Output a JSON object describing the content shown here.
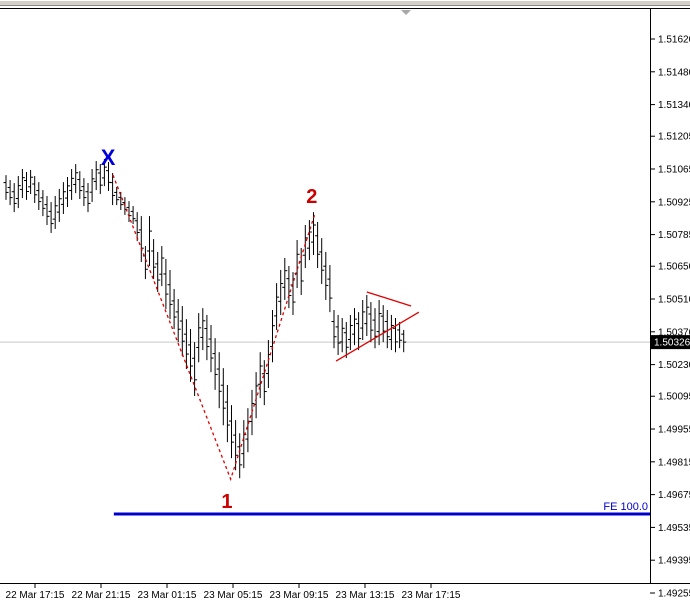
{
  "chart_data": {
    "type": "ohlc-bar",
    "timeframe_minutes": 15,
    "current_price": "1.50326",
    "y_axis_labels": [
      "1.51620",
      "1.51480",
      "1.51340",
      "1.51205",
      "1.51065",
      "1.50925",
      "1.50785",
      "1.50650",
      "1.50510",
      "1.50370",
      "1.50230",
      "1.50095",
      "1.49955",
      "1.49815",
      "1.49675",
      "1.49535",
      "1.49395",
      "1.49255"
    ],
    "y_axis_range": [
      1.49255,
      1.5162
    ],
    "x_axis_labels": [
      "22 Mar 17:15",
      "22 Mar 21:15",
      "23 Mar 01:15",
      "23 Mar 05:15",
      "23 Mar 09:15",
      "23 Mar 13:15",
      "23 Mar 17:15"
    ],
    "bars": [
      [
        1.51007,
        1.51039,
        1.50933,
        1.50965
      ],
      [
        1.50986,
        1.51018,
        1.50911,
        1.50943
      ],
      [
        1.50968,
        1.51005,
        1.50881,
        1.50918
      ],
      [
        1.50939,
        1.51035,
        1.50898,
        1.50994
      ],
      [
        1.50978,
        1.51065,
        1.50941,
        1.51028
      ],
      [
        1.51016,
        1.51052,
        1.50933,
        1.50969
      ],
      [
        1.50989,
        1.51061,
        1.50958,
        1.5103
      ],
      [
        1.51001,
        1.51035,
        1.5092,
        1.50955
      ],
      [
        1.50973,
        1.51009,
        1.5089,
        1.50926
      ],
      [
        1.50942,
        1.50975,
        1.50864,
        1.50897
      ],
      [
        1.50913,
        1.5095,
        1.50826,
        1.50863
      ],
      [
        1.50884,
        1.50924,
        1.50792,
        1.50832
      ],
      [
        1.50851,
        1.5095,
        1.50809,
        1.50908
      ],
      [
        1.50881,
        1.5098,
        1.50839,
        1.50938
      ],
      [
        1.50914,
        1.51009,
        1.50873,
        1.50968
      ],
      [
        1.50941,
        1.51031,
        1.50903,
        1.50993
      ],
      [
        1.50973,
        1.51065,
        1.50933,
        1.51025
      ],
      [
        1.50999,
        1.51086,
        1.50962,
        1.51049
      ],
      [
        1.5102,
        1.51056,
        1.50937,
        1.50973
      ],
      [
        1.5099,
        1.51026,
        1.50907,
        1.50943
      ],
      [
        1.50968,
        1.51005,
        1.50881,
        1.50918
      ],
      [
        1.50966,
        1.51065,
        1.50924,
        1.51023
      ],
      [
        1.51012,
        1.51099,
        1.50975,
        1.51062
      ],
      [
        1.51048,
        1.51086,
        1.50958,
        1.50996
      ],
      [
        1.51027,
        1.51108,
        1.50992,
        1.51073
      ],
      [
        1.51058,
        1.51095,
        1.50971,
        1.51008
      ],
      [
        1.51007,
        1.51048,
        1.50911,
        1.50952
      ],
      [
        1.50965,
        1.50988,
        1.50911,
        1.50934
      ],
      [
        1.50944,
        1.50967,
        1.5089,
        1.50913
      ],
      [
        1.50922,
        1.50945,
        1.50869,
        1.50892
      ],
      [
        1.50901,
        1.50928,
        1.50839,
        1.50866
      ],
      [
        1.50884,
        1.50907,
        1.5083,
        1.50853
      ],
      [
        1.50844,
        1.50881,
        1.50757,
        1.50794
      ],
      [
        1.50805,
        1.50864,
        1.50668,
        1.50727
      ],
      [
        1.50694,
        1.50736,
        1.50595,
        1.50637
      ],
      [
        1.50715,
        1.50864,
        1.50651,
        1.508
      ],
      [
        1.50715,
        1.50766,
        1.50595,
        1.50646
      ],
      [
        1.5066,
        1.50711,
        1.5054,
        1.50591
      ],
      [
        1.50616,
        1.50736,
        1.50565,
        1.50685
      ],
      [
        1.50617,
        1.50681,
        1.50467,
        1.50531
      ],
      [
        1.50571,
        1.50634,
        1.50424,
        1.50487
      ],
      [
        1.50502,
        1.50553,
        1.50382,
        1.50433
      ],
      [
        1.50455,
        1.5051,
        1.50326,
        1.50381
      ],
      [
        1.50416,
        1.5048,
        1.50266,
        1.5033
      ],
      [
        1.5036,
        1.50424,
        1.50211,
        1.50275
      ],
      [
        1.50314,
        1.50382,
        1.50156,
        1.50224
      ],
      [
        1.50257,
        1.50326,
        1.50096,
        1.50165
      ],
      [
        1.50303,
        1.5045,
        1.5024,
        1.50387
      ],
      [
        1.50346,
        1.50471,
        1.50292,
        1.50417
      ],
      [
        1.50384,
        1.50442,
        1.50249,
        1.50307
      ],
      [
        1.50339,
        1.50399,
        1.50198,
        1.50258
      ],
      [
        1.50277,
        1.50343,
        1.50122,
        1.50188
      ],
      [
        1.50211,
        1.50283,
        1.50044,
        1.50116
      ],
      [
        1.50142,
        1.50215,
        1.49971,
        1.50044
      ],
      [
        1.5007,
        1.50143,
        1.49899,
        1.49972
      ],
      [
        1.49989,
        1.50057,
        1.49831,
        1.49899
      ],
      [
        1.49929,
        1.49993,
        1.49779,
        1.49843
      ],
      [
        1.49879,
        1.49937,
        1.49745,
        1.49802
      ],
      [
        1.4985,
        1.49993,
        1.49788,
        1.49932
      ],
      [
        1.49912,
        1.50044,
        1.49856,
        1.49988
      ],
      [
        1.49987,
        1.50122,
        1.49929,
        1.50064
      ],
      [
        1.5006,
        1.50198,
        1.50001,
        1.50139
      ],
      [
        1.50146,
        1.50283,
        1.50087,
        1.50224
      ],
      [
        1.50191,
        1.50249,
        1.50057,
        1.50115
      ],
      [
        1.50192,
        1.50335,
        1.5013,
        1.50273
      ],
      [
        1.50307,
        1.50463,
        1.5024,
        1.50396
      ],
      [
        1.50438,
        1.50578,
        1.50378,
        1.50518
      ],
      [
        1.505,
        1.50634,
        1.50442,
        1.50576
      ],
      [
        1.5056,
        1.50685,
        1.50506,
        1.50631
      ],
      [
        1.50597,
        1.50651,
        1.50471,
        1.50525
      ],
      [
        1.5057,
        1.50625,
        1.50442,
        1.50497
      ],
      [
        1.50619,
        1.50762,
        1.50557,
        1.50701
      ],
      [
        1.50668,
        1.50728,
        1.50527,
        1.50587
      ],
      [
        1.50697,
        1.50826,
        1.50642,
        1.50771
      ],
      [
        1.50727,
        1.50847,
        1.50676,
        1.50796
      ],
      [
        1.50753,
        1.50881,
        1.50698,
        1.50826
      ],
      [
        1.5078,
        1.50839,
        1.50642,
        1.50701
      ],
      [
        1.50711,
        1.5077,
        1.50574,
        1.50633
      ],
      [
        1.5065,
        1.50711,
        1.50506,
        1.50568
      ],
      [
        1.50595,
        1.50655,
        1.50454,
        1.50514
      ],
      [
        1.50414,
        1.50463,
        1.503,
        1.50349
      ],
      [
        1.50391,
        1.50442,
        1.50271,
        1.50322
      ],
      [
        1.50327,
        1.50429,
        1.50283,
        1.50385
      ],
      [
        1.50366,
        1.50412,
        1.50258,
        1.50304
      ],
      [
        1.50337,
        1.50442,
        1.50292,
        1.50397
      ],
      [
        1.5036,
        1.50471,
        1.50313,
        1.50424
      ],
      [
        1.50405,
        1.50454,
        1.50292,
        1.50341
      ],
      [
        1.50386,
        1.50506,
        1.50335,
        1.50455
      ],
      [
        1.50405,
        1.50527,
        1.50352,
        1.50475
      ],
      [
        1.50446,
        1.50497,
        1.50326,
        1.50377
      ],
      [
        1.5042,
        1.50471,
        1.503,
        1.50351
      ],
      [
        1.50371,
        1.50506,
        1.50313,
        1.50448
      ],
      [
        1.50437,
        1.50484,
        1.50326,
        1.50373
      ],
      [
        1.50414,
        1.50463,
        1.503,
        1.50349
      ],
      [
        1.50337,
        1.50442,
        1.50292,
        1.50397
      ],
      [
        1.50385,
        1.50429,
        1.50283,
        1.50327
      ],
      [
        1.50378,
        1.50412,
        1.503,
        1.50334
      ],
      [
        1.5036,
        1.50378,
        1.50283,
        1.50326
      ]
    ],
    "zigzag_points": [
      [
        26.1,
        1.51039
      ],
      [
        54.8,
        1.49741
      ],
      [
        75.4,
        1.50877
      ]
    ],
    "triangle_upper": [
      [
        88.0,
        1.5054
      ],
      [
        98.8,
        1.5048
      ]
    ],
    "triangle_lower": [
      [
        80.5,
        1.50245
      ],
      [
        100.7,
        1.50454
      ]
    ],
    "fe_level": {
      "label": "FE 100.0",
      "price": 1.49592,
      "start_bar": 26.3
    },
    "wave_labels": {
      "x": {
        "text": "X",
        "bar": 24.9,
        "price": 1.51112,
        "color": "#0000dd"
      },
      "two": {
        "text": "2",
        "bar": 74.6,
        "price": 1.5095,
        "color": "#cc0000"
      },
      "one": {
        "text": "1",
        "bar": 53.9,
        "price": 1.49648,
        "color": "#cc0000"
      }
    },
    "colors": {
      "bars": "#000000",
      "zigzag": "#e00000",
      "triangle": "#e00000",
      "fe": "#0000cc",
      "price_line": "#c9c9c9",
      "badge_bg": "#000000",
      "badge_fg": "#ffffff",
      "axis_text": "#000000",
      "shift_marker": "#a8a8a8"
    },
    "legend": null,
    "grid": "off"
  }
}
